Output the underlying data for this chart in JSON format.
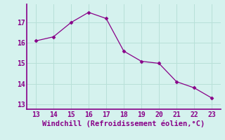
{
  "x": [
    13,
    14,
    15,
    16,
    17,
    18,
    19,
    20,
    21,
    22,
    23
  ],
  "y": [
    16.1,
    16.3,
    17.0,
    17.5,
    17.2,
    15.6,
    15.1,
    15.0,
    14.1,
    13.8,
    13.3
  ],
  "line_color": "#880088",
  "marker": "D",
  "marker_size": 2.5,
  "background_color": "#d5f2ee",
  "grid_color": "#b8e0d8",
  "xlabel": "Windchill (Refroidissement éolien,°C)",
  "xlabel_color": "#880088",
  "xlabel_fontsize": 7.5,
  "tick_color": "#880088",
  "tick_fontsize": 7,
  "axis_color": "#880088",
  "xlim": [
    12.5,
    23.5
  ],
  "ylim": [
    12.75,
    17.9
  ],
  "yticks": [
    13,
    14,
    15,
    16,
    17
  ],
  "xticks": [
    13,
    14,
    15,
    16,
    17,
    18,
    19,
    20,
    21,
    22,
    23
  ]
}
